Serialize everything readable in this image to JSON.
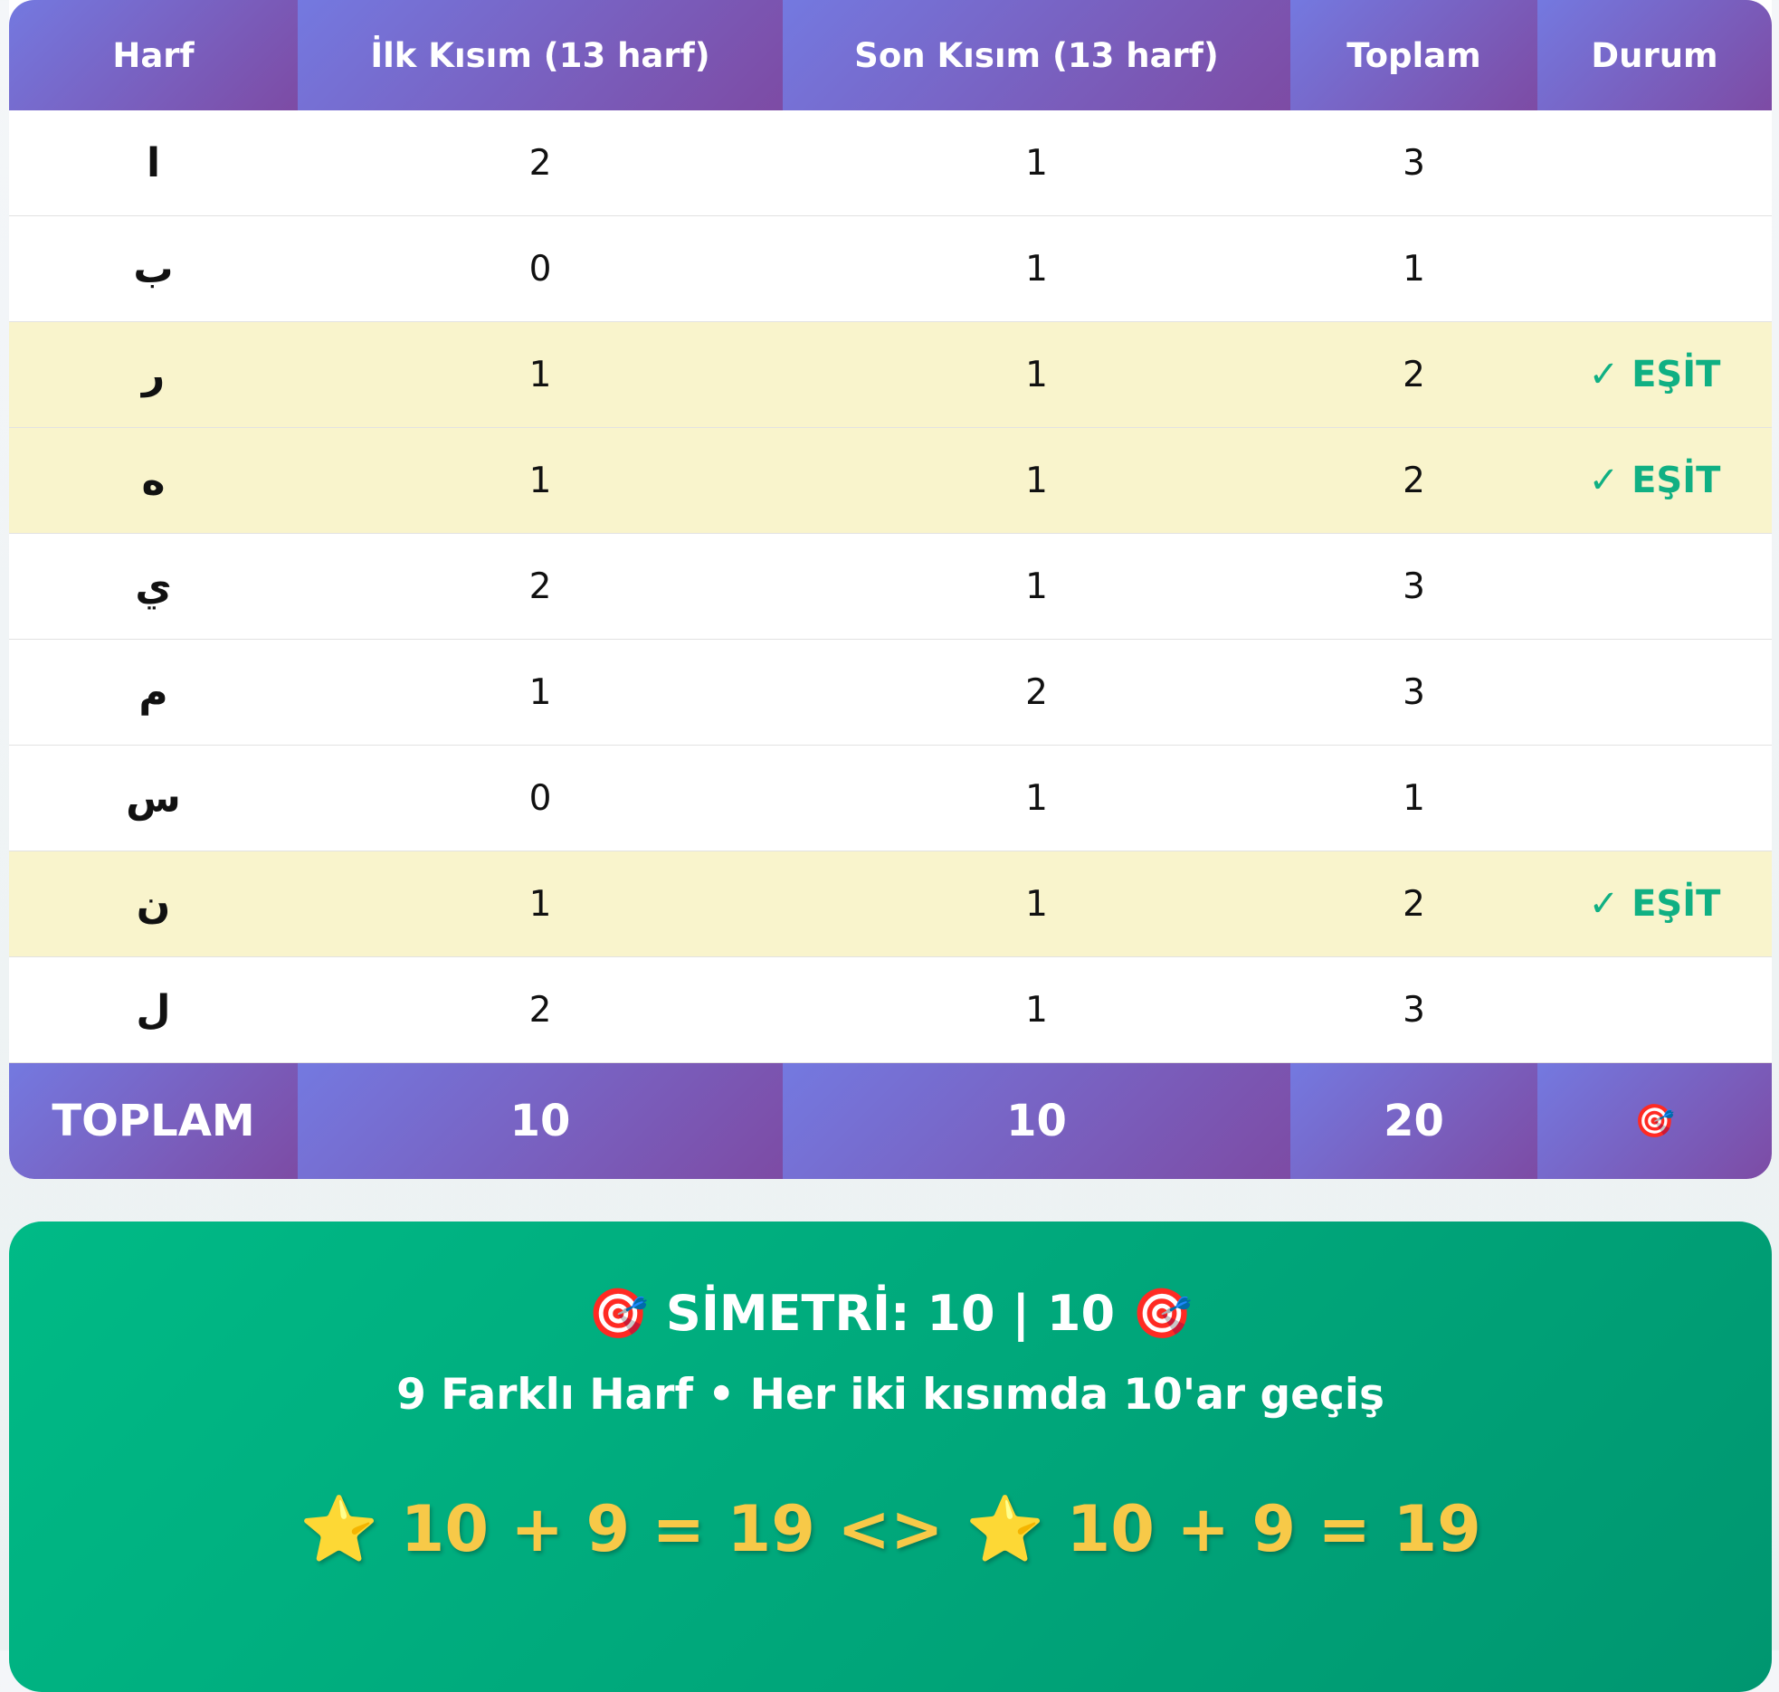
{
  "table": {
    "headers": [
      "Harf",
      "İlk Kısım (13 harf)",
      "Son Kısım (13 harf)",
      "Toplam",
      "Durum"
    ],
    "rows": [
      {
        "letter": "ا",
        "first": "2",
        "last": "1",
        "total": "3",
        "status": ""
      },
      {
        "letter": "ب",
        "first": "0",
        "last": "1",
        "total": "1",
        "status": ""
      },
      {
        "letter": "ر",
        "first": "1",
        "last": "1",
        "total": "2",
        "status": "✓ EŞİT"
      },
      {
        "letter": "ه",
        "first": "1",
        "last": "1",
        "total": "2",
        "status": "✓ EŞİT"
      },
      {
        "letter": "ي",
        "first": "2",
        "last": "1",
        "total": "3",
        "status": ""
      },
      {
        "letter": "م",
        "first": "1",
        "last": "2",
        "total": "3",
        "status": ""
      },
      {
        "letter": "س",
        "first": "0",
        "last": "1",
        "total": "1",
        "status": ""
      },
      {
        "letter": "ن",
        "first": "1",
        "last": "1",
        "total": "2",
        "status": "✓ EŞİT"
      },
      {
        "letter": "ل",
        "first": "2",
        "last": "1",
        "total": "3",
        "status": ""
      }
    ],
    "footer": {
      "label": "TOPLAM",
      "first": "10",
      "last": "10",
      "total": "20",
      "icon": "🎯"
    },
    "colors": {
      "header_gradient": [
        "#7479e0",
        "#7d4ba4"
      ],
      "equal_row_bg": "#f9f4cc",
      "status_color": "#10b083"
    }
  },
  "summary": {
    "title": "🎯 SİMETRİ: 10 | 10 🎯",
    "subtitle": "9 Farklı Harf • Her iki kısımda 10'ar geçiş",
    "formula": "⭐ 10 + 9 = 19 <> ⭐ 10 + 9 = 19",
    "colors": {
      "background": [
        "#00ba86",
        "#009670"
      ],
      "formula": "#f7c948"
    }
  }
}
